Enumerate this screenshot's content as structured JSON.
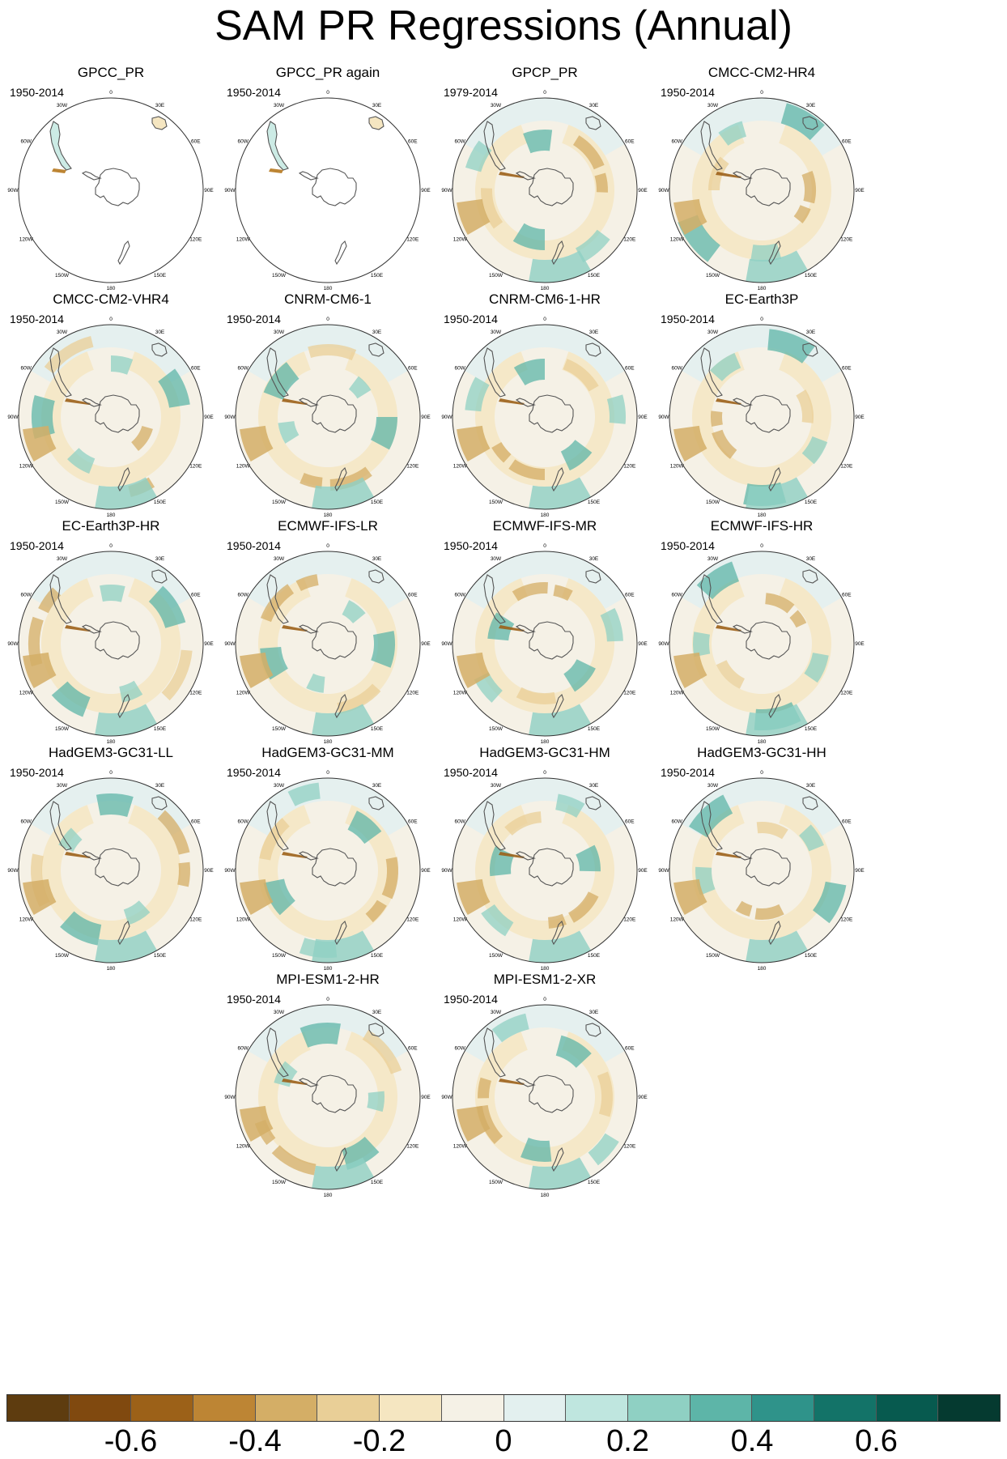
{
  "title": "SAM PR Regressions (Annual)",
  "lon_labels": [
    "0",
    "30E",
    "60E",
    "90E",
    "120E",
    "150E",
    "180",
    "150W",
    "120W",
    "90W",
    "60W",
    "30W"
  ],
  "panels": [
    {
      "name": "GPCC_PR",
      "period": "1950-2014",
      "style": "land"
    },
    {
      "name": "GPCC_PR again",
      "period": "1950-2014",
      "style": "land"
    },
    {
      "name": "GPCP_PR",
      "period": "1979-2014",
      "style": "full"
    },
    {
      "name": "CMCC-CM2-HR4",
      "period": "1950-2014",
      "style": "full"
    },
    {
      "name": "CMCC-CM2-VHR4",
      "period": "1950-2014",
      "style": "full"
    },
    {
      "name": "CNRM-CM6-1",
      "period": "1950-2014",
      "style": "full"
    },
    {
      "name": "CNRM-CM6-1-HR",
      "period": "1950-2014",
      "style": "full"
    },
    {
      "name": "EC-Earth3P",
      "period": "1950-2014",
      "style": "full"
    },
    {
      "name": "EC-Earth3P-HR",
      "period": "1950-2014",
      "style": "full"
    },
    {
      "name": "ECMWF-IFS-LR",
      "period": "1950-2014",
      "style": "full"
    },
    {
      "name": "ECMWF-IFS-MR",
      "period": "1950-2014",
      "style": "full"
    },
    {
      "name": "ECMWF-IFS-HR",
      "period": "1950-2014",
      "style": "full"
    },
    {
      "name": "HadGEM3-GC31-LL",
      "period": "1950-2014",
      "style": "full"
    },
    {
      "name": "HadGEM3-GC31-MM",
      "period": "1950-2014",
      "style": "full"
    },
    {
      "name": "HadGEM3-GC31-HM",
      "period": "1950-2014",
      "style": "full"
    },
    {
      "name": "HadGEM3-GC31-HH",
      "period": "1950-2014",
      "style": "full"
    },
    {
      "name": "MPI-ESM1-2-HR",
      "period": "1950-2014",
      "style": "full"
    },
    {
      "name": "MPI-ESM1-2-XR",
      "period": "1950-2014",
      "style": "full"
    }
  ],
  "colorbar": {
    "colors": [
      "#5e3c0f",
      "#80490f",
      "#9c6118",
      "#bd8534",
      "#d4ae66",
      "#e9cf97",
      "#f5e6c1",
      "#f5f1e6",
      "#e3f0ef",
      "#bfe6df",
      "#8fd0c3",
      "#5db5a8",
      "#2f938a",
      "#137368",
      "#075a4f",
      "#053a30"
    ],
    "labels": [
      "-0.6",
      "-0.4",
      "-0.2",
      "0",
      "0.2",
      "0.4",
      "0.6"
    ]
  }
}
